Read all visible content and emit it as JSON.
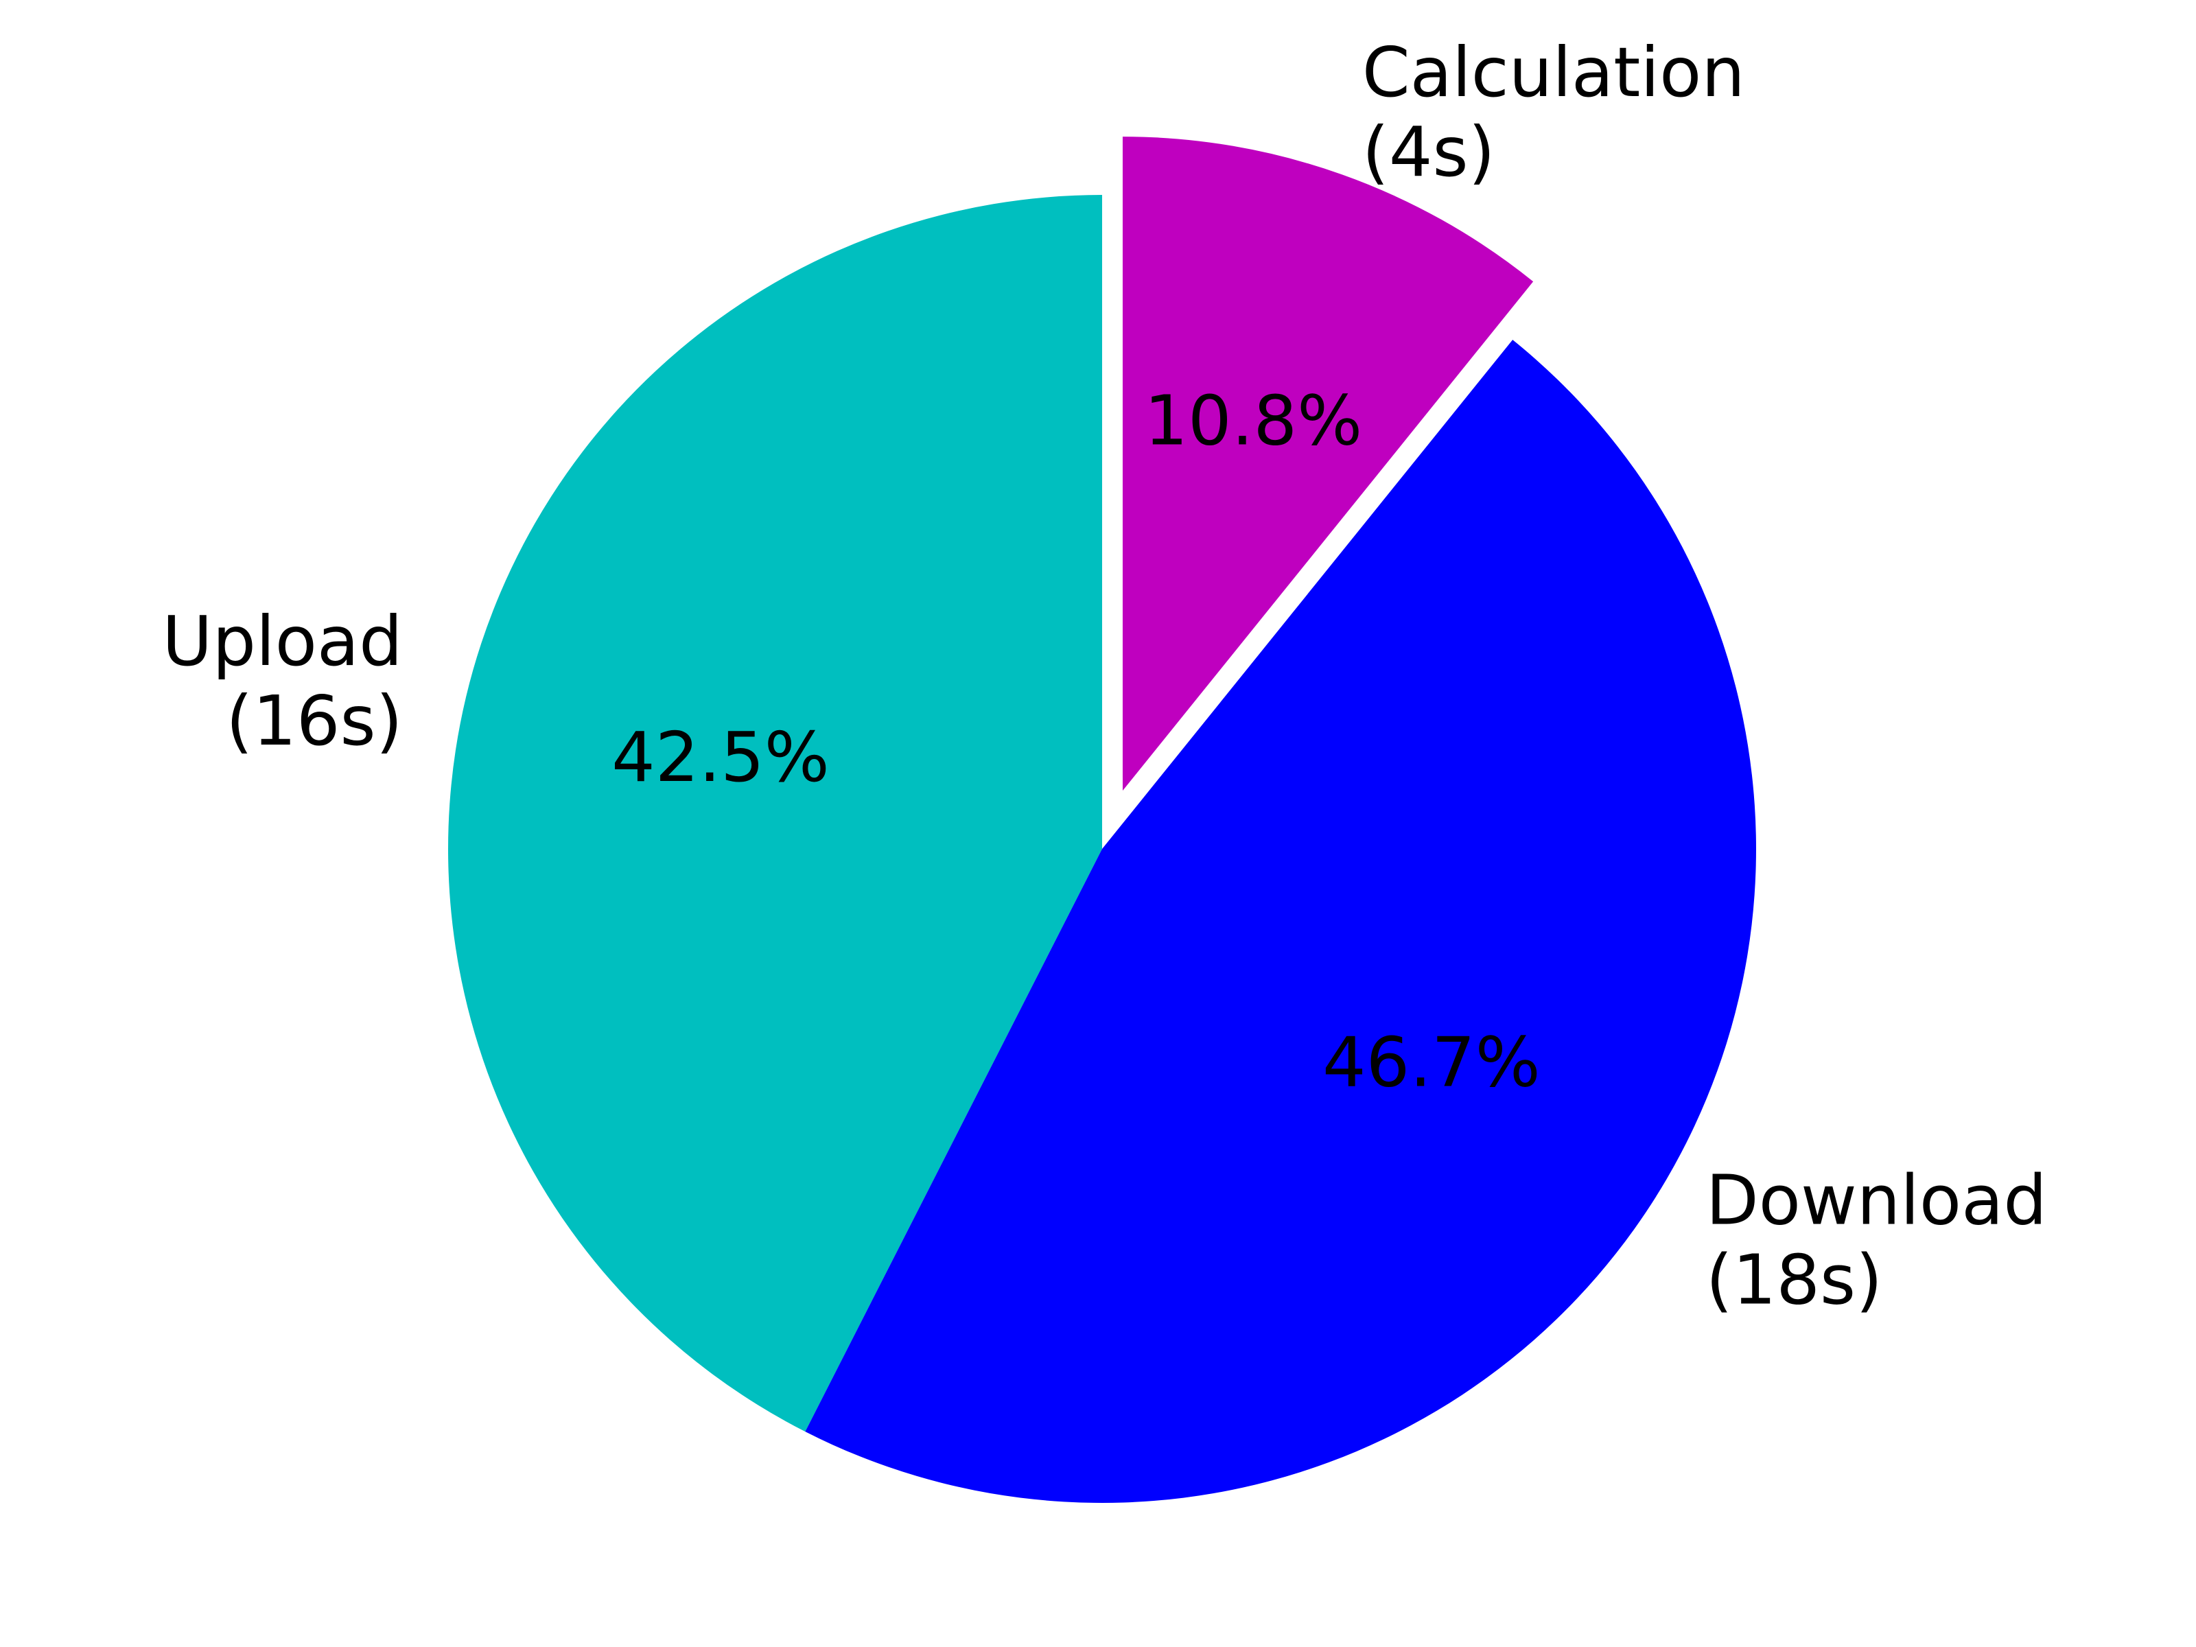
{
  "chart_data": {
    "type": "pie",
    "slices": [
      {
        "name": "Upload",
        "label_line1": "Upload",
        "label_line2": "(16s)",
        "pct_label": "42.5%",
        "value": 42.5,
        "color": "#00BFBF",
        "explode": false
      },
      {
        "name": "Download",
        "label_line1": "Download",
        "label_line2": "(18s)",
        "pct_label": "46.7%",
        "value": 46.7,
        "color": "#0000FF",
        "explode": false
      },
      {
        "name": "Calculation",
        "label_line1": "Calculation",
        "label_line2": "(4s)",
        "pct_label": "10.8%",
        "value": 10.8,
        "color": "#BF00BF",
        "explode": true
      }
    ],
    "start_angle_deg": 90,
    "direction": "counterclockwise",
    "legend": "none"
  }
}
